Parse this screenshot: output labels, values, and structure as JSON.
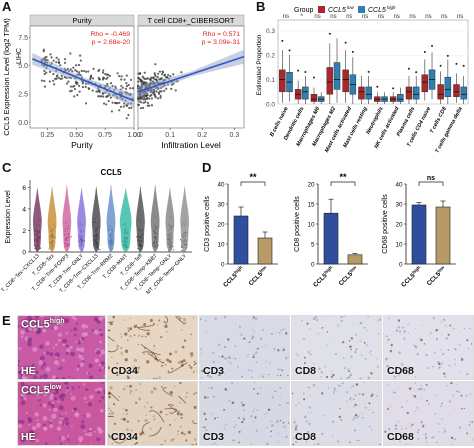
{
  "panels": {
    "a": "A",
    "b": "B",
    "c": "C",
    "d": "D",
    "e": "E"
  },
  "chart_data": [
    {
      "id": "A",
      "type": "scatter",
      "ylabel": "CCL5 Expression Level (log2 TPM)",
      "gene_label": "LIHC",
      "facets": [
        {
          "title": "Purity",
          "xlabel": "Purity",
          "xticks": [
            "0.25",
            "0.50",
            "0.75",
            "1.00"
          ],
          "xlim": [
            0.1,
            1.0
          ],
          "stat_rho": "Rho = -0.469",
          "stat_p": "p = 2.68e-20",
          "fit": {
            "x0": 0.12,
            "y0": 5.6,
            "x1": 1.0,
            "y1": 1.9
          }
        },
        {
          "title": "T cell CD8+_CIBERSORT",
          "xlabel": "Infiltration Level",
          "xticks": [
            "0.0",
            "0.1",
            "0.2",
            "0.3"
          ],
          "xlim": [
            0.0,
            0.33
          ],
          "stat_rho": "Rho = 0.571",
          "stat_p": "p = 3.09e-31",
          "fit": {
            "x0": 0.0,
            "y0": 2.7,
            "x1": 0.33,
            "y1": 5.8
          }
        }
      ],
      "yticks": [
        "0.0",
        "2.5",
        "5.0",
        "7.5"
      ],
      "ylim": [
        -0.5,
        8.5
      ]
    },
    {
      "id": "B",
      "type": "bar",
      "ylabel": "Estimated Proportion",
      "legend_title": "Group",
      "legend": [
        "CCL5low",
        "CCL5high"
      ],
      "colors": {
        "low": "#a8282e",
        "high": "#2f7fb5"
      },
      "categories": [
        "B cells naive",
        "Dendritic cells",
        "Macrophages M0",
        "Macrophages M2",
        "Mast cells activated",
        "Mast cells resting",
        "Neutrophils",
        "NK cells activated",
        "Plasma cells",
        "T cells CD4 naive",
        "T cells CD8",
        "T cells gamma delta"
      ],
      "significance": [
        "ns",
        "*",
        "ns",
        "ns",
        "ns",
        "ns",
        "ns",
        "ns",
        "ns",
        "ns",
        "ns",
        "ns"
      ],
      "yticks": [
        "0.0",
        "0.1",
        "0.2",
        "0.3"
      ],
      "ylim": [
        0,
        0.32
      ],
      "low_box": [
        [
          0.05,
          0.1,
          0.14
        ],
        [
          0.02,
          0.04,
          0.06
        ],
        [
          0.01,
          0.02,
          0.04
        ],
        [
          0.04,
          0.09,
          0.15
        ],
        [
          0.05,
          0.1,
          0.14
        ],
        [
          0.02,
          0.05,
          0.07
        ],
        [
          0.01,
          0.02,
          0.03
        ],
        [
          0.01,
          0.02,
          0.03
        ],
        [
          0.02,
          0.05,
          0.07
        ],
        [
          0.05,
          0.09,
          0.12
        ],
        [
          0.02,
          0.04,
          0.08
        ],
        [
          0.03,
          0.05,
          0.08
        ]
      ],
      "high_box": [
        [
          0.05,
          0.09,
          0.13
        ],
        [
          0.02,
          0.05,
          0.07
        ],
        [
          0.01,
          0.02,
          0.03
        ],
        [
          0.06,
          0.1,
          0.17
        ],
        [
          0.04,
          0.08,
          0.12
        ],
        [
          0.02,
          0.04,
          0.07
        ],
        [
          0.01,
          0.02,
          0.03
        ],
        [
          0.01,
          0.02,
          0.04
        ],
        [
          0.02,
          0.04,
          0.07
        ],
        [
          0.06,
          0.1,
          0.14
        ],
        [
          0.03,
          0.06,
          0.11
        ],
        [
          0.02,
          0.04,
          0.07
        ]
      ]
    },
    {
      "id": "C",
      "type": "violin",
      "title": "CCL5",
      "ylabel": "Expression Level",
      "yticks": [
        "0",
        "2",
        "4",
        "6"
      ],
      "ylim": [
        0,
        6.5
      ],
      "categories": [
        "T_CD8−Tex−CXCL13",
        "T_CD8−Tex",
        "T_CD8−Trm−FOXP3",
        "T_CD8−Trm−GNLY",
        "T_CD8−Trm−CXCL13",
        "T_CD8−Trm−RRM2",
        "T_CD8−MAIT",
        "T_CD8−Teff",
        "T_CD8−Temp−KBB7",
        "T_CD8−Temp−GNLY",
        "MT_CD8−Temp−GNLY"
      ],
      "colors": [
        "#6f2c5b",
        "#c58a2a",
        "#cf5c9a",
        "#7f6ad8",
        "#3e3e3e",
        "#5e88c8",
        "#26b8a0",
        "#434343",
        "#6b6b6b",
        "#7f7f7f",
        "#8a8a8a"
      ]
    },
    {
      "id": "D",
      "type": "bar",
      "plots": [
        {
          "ylabel": "CD3 positive cells",
          "yticks": [
            "0",
            "10",
            "20",
            "30",
            "40"
          ],
          "ylim": [
            0,
            40
          ],
          "categories": [
            "CCL5high",
            "CCL5low"
          ],
          "values": [
            24,
            13
          ],
          "errors": [
            4.5,
            3
          ],
          "sig": "**"
        },
        {
          "ylabel": "CD8 positive cells",
          "yticks": [
            "0",
            "5",
            "10",
            "15",
            "20"
          ],
          "ylim": [
            0,
            20
          ],
          "categories": [
            "CCL5high",
            "CCL5low"
          ],
          "values": [
            12.7,
            2.3
          ],
          "errors": [
            3.5,
            0.3
          ],
          "sig": "**"
        },
        {
          "ylabel": "CD68 positive cells",
          "yticks": [
            "0",
            "10",
            "20",
            "30",
            "40"
          ],
          "ylim": [
            0,
            40
          ],
          "categories": [
            "CCL5high",
            "CCL5low"
          ],
          "values": [
            29.5,
            28.5
          ],
          "errors": [
            1.2,
            3
          ],
          "sig": "ns"
        }
      ],
      "colors": {
        "high": "#2f4f9e",
        "low": "#b89a66"
      }
    }
  ],
  "panel_e": {
    "rows": [
      {
        "title_base": "CCL5",
        "title_sup": "high",
        "tiles": [
          "HE",
          "CD34",
          "CD3",
          "CD8",
          "CD68"
        ]
      },
      {
        "title_base": "CCL5",
        "title_sup": "low",
        "tiles": [
          "HE",
          "CD34",
          "CD3",
          "CD8",
          "CD68"
        ]
      }
    ]
  }
}
